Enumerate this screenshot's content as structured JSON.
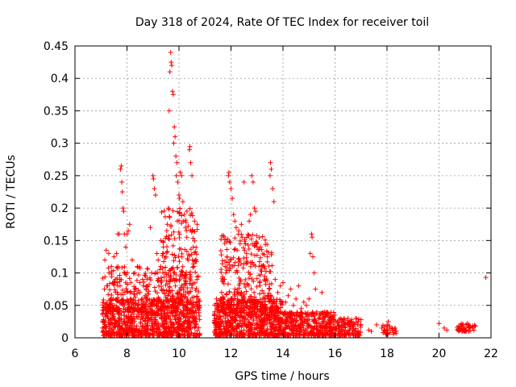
{
  "chart_data": {
    "type": "scatter",
    "title": "Day 318 of 2024, Rate Of TEC Index for receiver toil",
    "xlabel": "GPS time / hours",
    "ylabel": "ROTI / TECUs",
    "xlim": [
      6,
      22
    ],
    "ylim": [
      0,
      0.45
    ],
    "xticks": [
      6,
      8,
      10,
      12,
      14,
      16,
      18,
      20,
      22
    ],
    "yticks": [
      0,
      0.05,
      0.1,
      0.15,
      0.2,
      0.25,
      0.3,
      0.35,
      0.4,
      0.45
    ],
    "ytick_labels": [
      "0",
      "0.05",
      "0.1",
      "0.15",
      "0.2",
      "0.25",
      "0.3",
      "0.35",
      "0.4",
      "0.45"
    ],
    "grid": true,
    "marker": "+",
    "color": "#ff0000",
    "series": [
      {
        "name": "ROTI",
        "points": [
          [
            7.1,
            0.028
          ],
          [
            7.15,
            0.12
          ],
          [
            7.2,
            0.135
          ],
          [
            7.25,
            0.08
          ],
          [
            7.3,
            0.13
          ],
          [
            7.35,
            0.06
          ],
          [
            7.4,
            0.11
          ],
          [
            7.45,
            0.045
          ],
          [
            7.5,
            0.125
          ],
          [
            7.55,
            0.09
          ],
          [
            7.6,
            0.13
          ],
          [
            7.65,
            0.16
          ],
          [
            7.7,
            0.16
          ],
          [
            7.75,
            0.26
          ],
          [
            7.78,
            0.265
          ],
          [
            7.8,
            0.24
          ],
          [
            7.82,
            0.225
          ],
          [
            7.85,
            0.2
          ],
          [
            7.87,
            0.195
          ],
          [
            7.9,
            0.16
          ],
          [
            7.95,
            0.14
          ],
          [
            8.0,
            0.16
          ],
          [
            8.05,
            0.165
          ],
          [
            8.1,
            0.175
          ],
          [
            8.2,
            0.12
          ],
          [
            8.3,
            0.1
          ],
          [
            8.4,
            0.11
          ],
          [
            8.5,
            0.07
          ],
          [
            8.6,
            0.09
          ],
          [
            8.7,
            0.065
          ],
          [
            8.8,
            0.06
          ],
          [
            8.9,
            0.17
          ],
          [
            8.95,
            0.1
          ],
          [
            9.0,
            0.25
          ],
          [
            9.02,
            0.245
          ],
          [
            9.05,
            0.23
          ],
          [
            9.1,
            0.22
          ],
          [
            9.15,
            0.13
          ],
          [
            9.2,
            0.12
          ],
          [
            9.3,
            0.11
          ],
          [
            9.4,
            0.14
          ],
          [
            9.5,
            0.125
          ],
          [
            9.55,
            0.175
          ],
          [
            9.6,
            0.2
          ],
          [
            9.62,
            0.35
          ],
          [
            9.65,
            0.41
          ],
          [
            9.68,
            0.44
          ],
          [
            9.7,
            0.425
          ],
          [
            9.72,
            0.42
          ],
          [
            9.75,
            0.38
          ],
          [
            9.78,
            0.375
          ],
          [
            9.8,
            0.3
          ],
          [
            9.82,
            0.325
          ],
          [
            9.85,
            0.31
          ],
          [
            9.88,
            0.28
          ],
          [
            9.9,
            0.25
          ],
          [
            9.92,
            0.27
          ],
          [
            9.95,
            0.24
          ],
          [
            10.0,
            0.22
          ],
          [
            10.02,
            0.215
          ],
          [
            10.05,
            0.255
          ],
          [
            10.1,
            0.25
          ],
          [
            10.15,
            0.21
          ],
          [
            10.2,
            0.19
          ],
          [
            10.25,
            0.17
          ],
          [
            10.3,
            0.155
          ],
          [
            10.35,
            0.12
          ],
          [
            10.4,
            0.29
          ],
          [
            10.42,
            0.295
          ],
          [
            10.45,
            0.27
          ],
          [
            10.5,
            0.25
          ],
          [
            10.55,
            0.14
          ],
          [
            10.6,
            0.18
          ],
          [
            10.65,
            0.12
          ],
          [
            10.7,
            0.175
          ],
          [
            10.75,
            0.095
          ],
          [
            11.5,
            0.05
          ],
          [
            11.6,
            0.06
          ],
          [
            11.7,
            0.055
          ],
          [
            11.75,
            0.09
          ],
          [
            11.8,
            0.1
          ],
          [
            11.85,
            0.125
          ],
          [
            11.9,
            0.25
          ],
          [
            11.92,
            0.255
          ],
          [
            11.95,
            0.24
          ],
          [
            12.0,
            0.23
          ],
          [
            12.05,
            0.215
          ],
          [
            12.1,
            0.19
          ],
          [
            12.15,
            0.18
          ],
          [
            12.2,
            0.17
          ],
          [
            12.3,
            0.165
          ],
          [
            12.35,
            0.145
          ],
          [
            12.4,
            0.175
          ],
          [
            12.5,
            0.24
          ],
          [
            12.55,
            0.145
          ],
          [
            12.6,
            0.13
          ],
          [
            12.7,
            0.18
          ],
          [
            12.75,
            0.19
          ],
          [
            12.8,
            0.25
          ],
          [
            12.85,
            0.24
          ],
          [
            12.9,
            0.2
          ],
          [
            12.95,
            0.195
          ],
          [
            13.0,
            0.14
          ],
          [
            13.1,
            0.085
          ],
          [
            13.2,
            0.11
          ],
          [
            13.3,
            0.095
          ],
          [
            13.4,
            0.125
          ],
          [
            13.5,
            0.25
          ],
          [
            13.52,
            0.27
          ],
          [
            13.55,
            0.26
          ],
          [
            13.6,
            0.23
          ],
          [
            13.65,
            0.21
          ],
          [
            13.7,
            0.09
          ],
          [
            13.8,
            0.07
          ],
          [
            13.9,
            0.08
          ],
          [
            14.0,
            0.085
          ],
          [
            14.1,
            0.055
          ],
          [
            14.2,
            0.065
          ],
          [
            14.3,
            0.075
          ],
          [
            14.4,
            0.05
          ],
          [
            14.5,
            0.06
          ],
          [
            14.6,
            0.08
          ],
          [
            14.7,
            0.045
          ],
          [
            14.8,
            0.055
          ],
          [
            14.9,
            0.05
          ],
          [
            15.0,
            0.06
          ],
          [
            15.05,
            0.13
          ],
          [
            15.1,
            0.16
          ],
          [
            15.12,
            0.155
          ],
          [
            15.15,
            0.125
          ],
          [
            15.2,
            0.1
          ],
          [
            15.25,
            0.075
          ],
          [
            15.3,
            0.04
          ],
          [
            15.4,
            0.035
          ],
          [
            15.5,
            0.07
          ],
          [
            15.6,
            0.04
          ],
          [
            15.7,
            0.035
          ],
          [
            15.8,
            0.03
          ],
          [
            15.9,
            0.03
          ],
          [
            16.0,
            0.035
          ],
          [
            16.1,
            0.025
          ],
          [
            16.2,
            0.03
          ],
          [
            16.3,
            0.025
          ],
          [
            16.4,
            0.022
          ],
          [
            16.5,
            0.03
          ],
          [
            16.6,
            0.025
          ],
          [
            16.7,
            0.02
          ],
          [
            16.8,
            0.03
          ],
          [
            17.0,
            0.028
          ],
          [
            17.3,
            0.012
          ],
          [
            17.4,
            0.01
          ],
          [
            17.6,
            0.02
          ],
          [
            17.8,
            0.015
          ],
          [
            17.85,
            0.008
          ],
          [
            17.9,
            0.012
          ],
          [
            18.0,
            0.02
          ],
          [
            18.05,
            0.025
          ],
          [
            18.1,
            0.018
          ],
          [
            18.2,
            0.012
          ],
          [
            18.3,
            0.015
          ],
          [
            18.35,
            0.01
          ],
          [
            20.0,
            0.022
          ],
          [
            20.2,
            0.015
          ],
          [
            20.3,
            0.012
          ],
          [
            20.8,
            0.018
          ],
          [
            20.9,
            0.02
          ],
          [
            21.0,
            0.015
          ],
          [
            21.1,
            0.022
          ],
          [
            21.2,
            0.018
          ],
          [
            21.3,
            0.015
          ],
          [
            21.4,
            0.018
          ],
          [
            21.8,
            0.093
          ]
        ],
        "dense_bands": [
          {
            "x_range": [
              7.05,
              10.8
            ],
            "y_range": [
              0.0,
              0.06
            ],
            "count": 900
          },
          {
            "x_range": [
              7.05,
              10.8
            ],
            "y_range": [
              0.04,
              0.11
            ],
            "count": 260
          },
          {
            "x_range": [
              9.3,
              10.7
            ],
            "y_range": [
              0.06,
              0.2
            ],
            "count": 160
          },
          {
            "x_range": [
              11.35,
              14.0
            ],
            "y_range": [
              0.0,
              0.06
            ],
            "count": 700
          },
          {
            "x_range": [
              11.6,
              13.6
            ],
            "y_range": [
              0.04,
              0.16
            ],
            "count": 280
          },
          {
            "x_range": [
              14.0,
              16.0
            ],
            "y_range": [
              0.0,
              0.04
            ],
            "count": 380
          },
          {
            "x_range": [
              16.0,
              17.0
            ],
            "y_range": [
              0.0,
              0.03
            ],
            "count": 120
          },
          {
            "x_range": [
              17.8,
              18.4
            ],
            "y_range": [
              0.005,
              0.02
            ],
            "count": 25
          },
          {
            "x_range": [
              20.7,
              21.4
            ],
            "y_range": [
              0.01,
              0.022
            ],
            "count": 45
          }
        ]
      }
    ]
  }
}
